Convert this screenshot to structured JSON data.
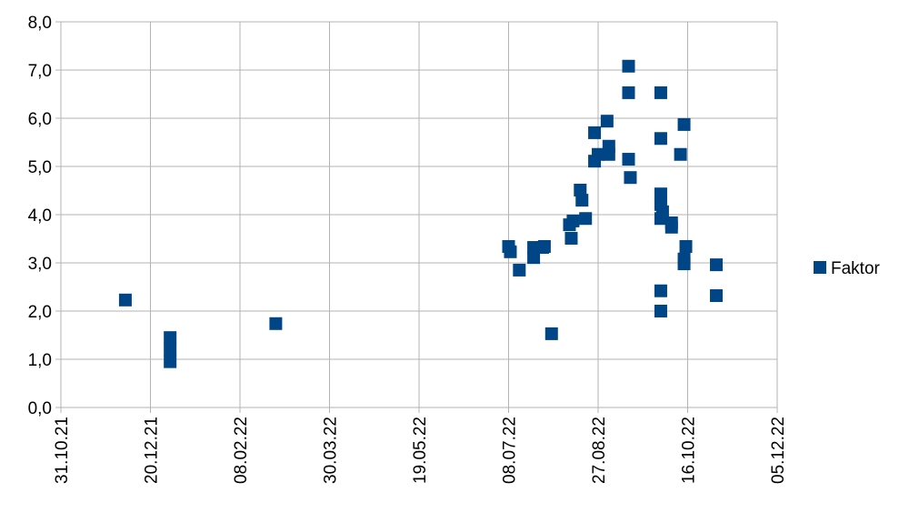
{
  "chart_data": {
    "type": "scatter",
    "series": [
      {
        "name": "Faktor",
        "color": "#004586",
        "x": [
          "2021-12-06",
          "2021-12-31",
          "2021-12-31",
          "2021-12-31",
          "2022-02-28",
          "2022-07-08",
          "2022-07-09",
          "2022-07-14",
          "2022-07-22",
          "2022-07-22",
          "2022-07-27",
          "2022-07-28",
          "2022-08-01",
          "2022-08-11",
          "2022-08-12",
          "2022-08-13",
          "2022-08-17",
          "2022-08-18",
          "2022-08-20",
          "2022-08-25",
          "2022-08-25",
          "2022-08-27",
          "2022-09-01",
          "2022-09-02",
          "2022-09-02",
          "2022-09-13",
          "2022-09-13",
          "2022-09-13",
          "2022-09-14",
          "2022-10-01",
          "2022-10-01",
          "2022-10-01",
          "2022-10-01",
          "2022-10-01",
          "2022-10-02",
          "2022-10-01",
          "2022-10-01",
          "2022-10-07",
          "2022-10-07",
          "2022-10-12",
          "2022-10-14",
          "2022-10-14",
          "2022-10-14",
          "2022-10-15",
          "2022-11-01",
          "2022-11-01"
        ],
        "values": [
          2.23,
          1.45,
          1.2,
          0.95,
          1.74,
          3.34,
          3.23,
          2.85,
          3.11,
          3.32,
          3.32,
          3.34,
          1.53,
          3.79,
          3.51,
          3.87,
          4.51,
          4.3,
          3.92,
          5.7,
          5.11,
          5.25,
          5.94,
          5.25,
          5.42,
          7.08,
          6.53,
          5.15,
          4.77,
          6.53,
          5.58,
          4.43,
          4.21,
          3.92,
          4.06,
          2.42,
          2.0,
          3.83,
          3.74,
          5.25,
          3.08,
          2.98,
          5.87,
          3.34,
          2.96,
          2.32
        ]
      }
    ],
    "xlim": [
      "2021-10-31",
      "2022-12-05"
    ],
    "xticks": [
      {
        "value": "2021-10-31",
        "label": "31.10.21"
      },
      {
        "value": "2021-12-20",
        "label": "20.12.21"
      },
      {
        "value": "2022-02-08",
        "label": "08.02.22"
      },
      {
        "value": "2022-03-30",
        "label": "30.03.22"
      },
      {
        "value": "2022-05-19",
        "label": "19.05.22"
      },
      {
        "value": "2022-07-08",
        "label": "08.07.22"
      },
      {
        "value": "2022-08-27",
        "label": "27.08.22"
      },
      {
        "value": "2022-10-16",
        "label": "16.10.22"
      },
      {
        "value": "2022-12-05",
        "label": "05.12.22"
      }
    ],
    "ylim": [
      0,
      8
    ],
    "yticks": [
      {
        "value": 0,
        "label": "0,0"
      },
      {
        "value": 1,
        "label": "1,0"
      },
      {
        "value": 2,
        "label": "2,0"
      },
      {
        "value": 3,
        "label": "3,0"
      },
      {
        "value": 4,
        "label": "4,0"
      },
      {
        "value": 5,
        "label": "5,0"
      },
      {
        "value": 6,
        "label": "6,0"
      },
      {
        "value": 7,
        "label": "7,0"
      },
      {
        "value": 8,
        "label": "8,0"
      }
    ],
    "grid": true,
    "legend": "right"
  }
}
